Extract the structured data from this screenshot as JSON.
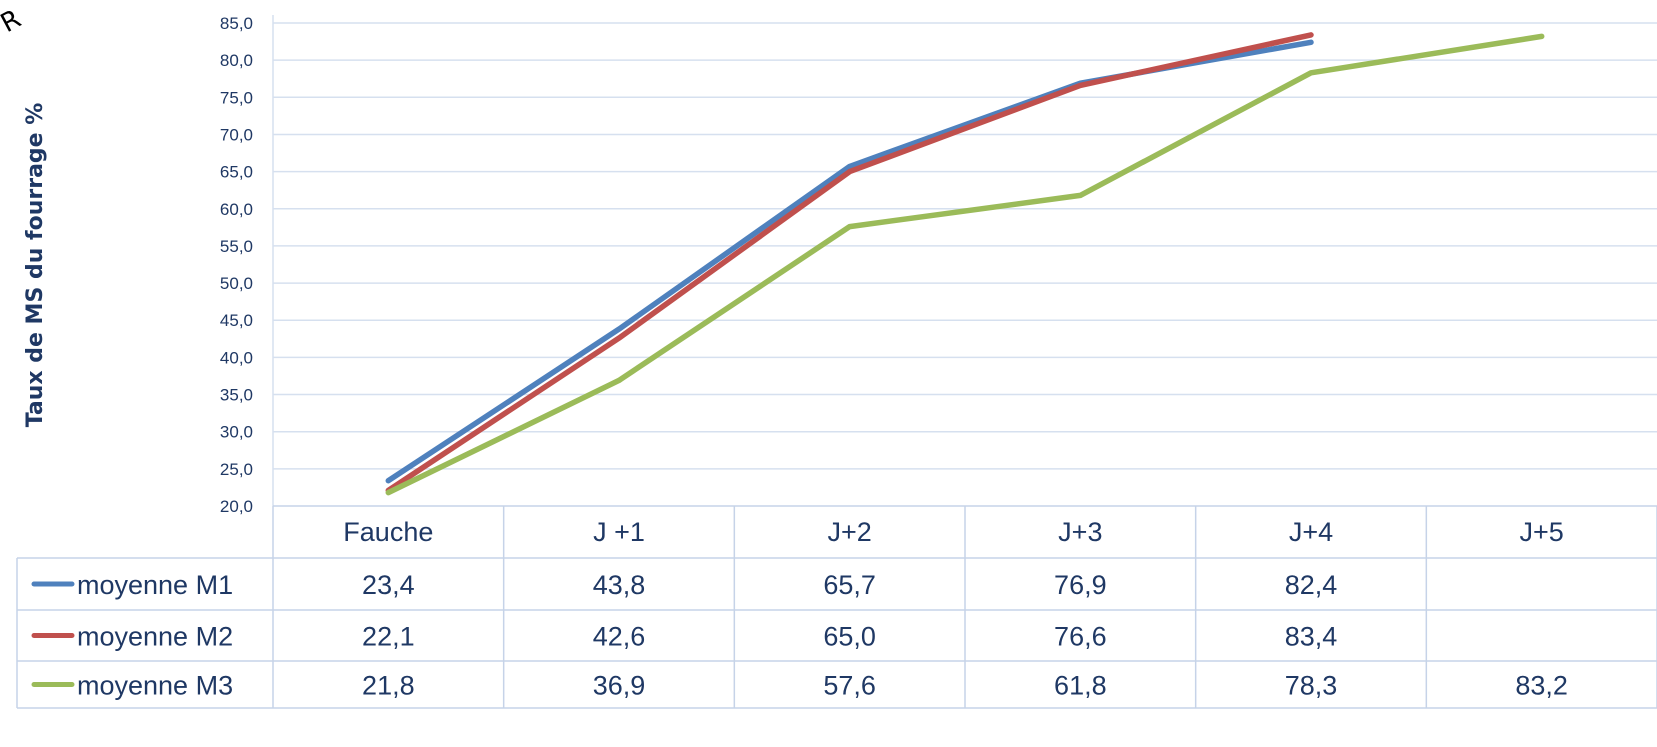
{
  "chart_data": {
    "type": "line",
    "title": "",
    "corner_text": "R",
    "ylabel": "Taux de MS du fourrage %",
    "xlabel": "",
    "ylim": [
      20,
      85
    ],
    "ytick_step": 5,
    "ytick_labels": [
      "20,0",
      "25,0",
      "30,0",
      "35,0",
      "40,0",
      "45,0",
      "50,0",
      "55,0",
      "60,0",
      "65,0",
      "70,0",
      "75,0",
      "80,0",
      "85,0"
    ],
    "grid": true,
    "legend": "data-table",
    "categories": [
      "Fauche",
      "J +1",
      "J+2",
      "J+3",
      "J+4",
      "J+5"
    ],
    "series": [
      {
        "name": "moyenne M1",
        "color": "#4f81bd",
        "values": [
          23.4,
          43.8,
          65.7,
          76.9,
          82.4,
          null
        ],
        "labels": [
          "23,4",
          "43,8",
          "65,7",
          "76,9",
          "82,4",
          ""
        ]
      },
      {
        "name": "moyenne M2",
        "color": "#c0504d",
        "values": [
          22.1,
          42.6,
          65.0,
          76.6,
          83.4,
          null
        ],
        "labels": [
          "22,1",
          "42,6",
          "65,0",
          "76,6",
          "83,4",
          ""
        ]
      },
      {
        "name": "moyenne M3",
        "color": "#9bbb59",
        "values": [
          21.8,
          36.9,
          57.6,
          61.8,
          78.3,
          83.2
        ],
        "labels": [
          "21,8",
          "36,9",
          "57,6",
          "61,8",
          "78,3",
          "83,2"
        ]
      }
    ]
  }
}
